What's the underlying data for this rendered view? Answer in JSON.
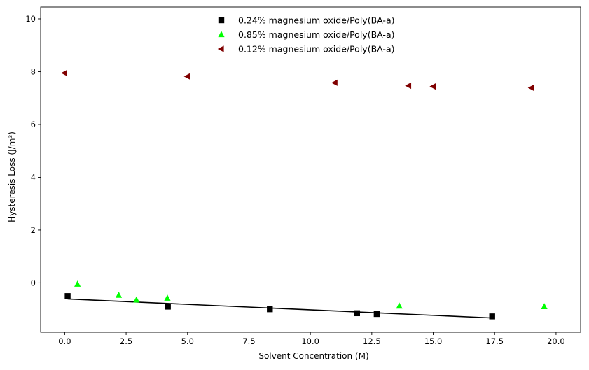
{
  "chart_data": {
    "type": "scatter",
    "xlabel": "Solvent Concentration (M)",
    "ylabel": "Hysteresis Loss (J/m³)",
    "xlim": [
      -0.98,
      21.0
    ],
    "ylim": [
      -1.87,
      10.45
    ],
    "x_ticks": [
      0.0,
      2.5,
      5.0,
      7.5,
      10.0,
      12.5,
      15.0,
      17.5,
      20.0
    ],
    "x_tick_labels": [
      "0.0",
      "2.5",
      "5.0",
      "7.5",
      "10.0",
      "12.5",
      "15.0",
      "17.5",
      "20.0"
    ],
    "y_ticks": [
      0,
      2,
      4,
      6,
      8,
      10
    ],
    "y_tick_labels": [
      "0",
      "2",
      "4",
      "6",
      "8",
      "10"
    ],
    "grid": false,
    "legend_position": "top-center",
    "series": [
      {
        "name": "0.24% magnesium oxide/Poly(BA-a)",
        "marker": "square",
        "color": "#000000",
        "x": [
          0.12,
          4.2,
          8.35,
          11.9,
          12.7,
          17.4
        ],
        "y": [
          -0.5,
          -0.9,
          -1.0,
          -1.15,
          -1.18,
          -1.27
        ]
      },
      {
        "name": "0.85% magnesium oxide/Poly(BA-a)",
        "marker": "triangle-up",
        "color": "#00ff00",
        "x": [
          0.52,
          2.2,
          2.92,
          4.18,
          13.62,
          19.52
        ],
        "y": [
          -0.05,
          -0.47,
          -0.65,
          -0.58,
          -0.88,
          -0.9
        ]
      },
      {
        "name": "0.12% magnesium oxide/Poly(BA-a)",
        "marker": "triangle-left",
        "color": "#800000",
        "x": [
          0.0,
          5.0,
          11.0,
          14.0,
          15.0,
          19.0
        ],
        "y": [
          7.95,
          7.82,
          7.58,
          7.47,
          7.44,
          7.39
        ]
      }
    ],
    "fit_line": {
      "color": "#000000",
      "x": [
        0.12,
        17.4
      ],
      "y": [
        -0.61,
        -1.33
      ]
    }
  }
}
